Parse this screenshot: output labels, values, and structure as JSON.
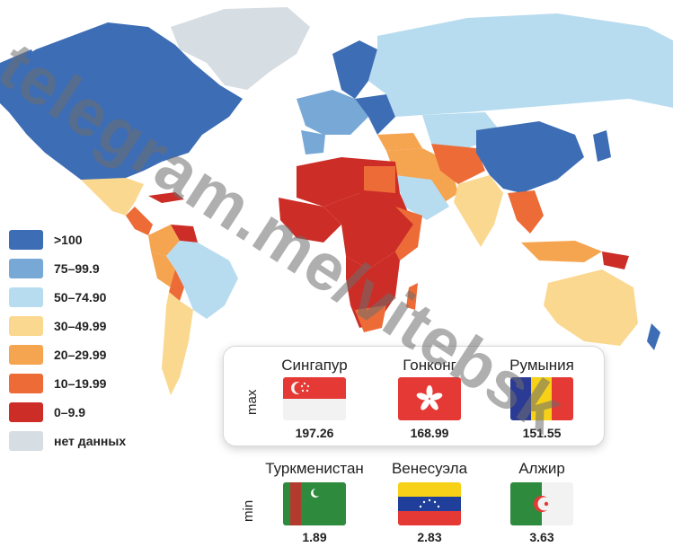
{
  "legend": {
    "items": [
      {
        "label": ">100",
        "color": "#3d6db5"
      },
      {
        "label": "75–99.9",
        "color": "#77a8d6"
      },
      {
        "label": "50–74.90",
        "color": "#b7dcef"
      },
      {
        "label": "30–49.99",
        "color": "#fbd88f"
      },
      {
        "label": "20–29.99",
        "color": "#f5a450"
      },
      {
        "label": "10–19.99",
        "color": "#ec6b37"
      },
      {
        "label": "0–9.9",
        "color": "#cc2d26"
      },
      {
        "label": "нет данных",
        "color": "#d6dde3"
      }
    ]
  },
  "max_panel": {
    "label": "max",
    "countries": [
      {
        "name": "Сингапур",
        "value": "197.26",
        "flag": "singapore-flag-icon"
      },
      {
        "name": "Гонконг",
        "value": "168.99",
        "flag": "hong-kong-flag-icon"
      },
      {
        "name": "Румыния",
        "value": "151.55",
        "flag": "romania-flag-icon"
      }
    ]
  },
  "min_panel": {
    "label": "min",
    "countries": [
      {
        "name": "Туркменистан",
        "value": "1.89",
        "flag": "turkmenistan-flag-icon"
      },
      {
        "name": "Венесуэла",
        "value": "2.83",
        "flag": "venezuela-flag-icon"
      },
      {
        "name": "Алжир",
        "value": "3.63",
        "flag": "algeria-flag-icon"
      }
    ]
  },
  "watermark": "telegram.me/vitebsk"
}
